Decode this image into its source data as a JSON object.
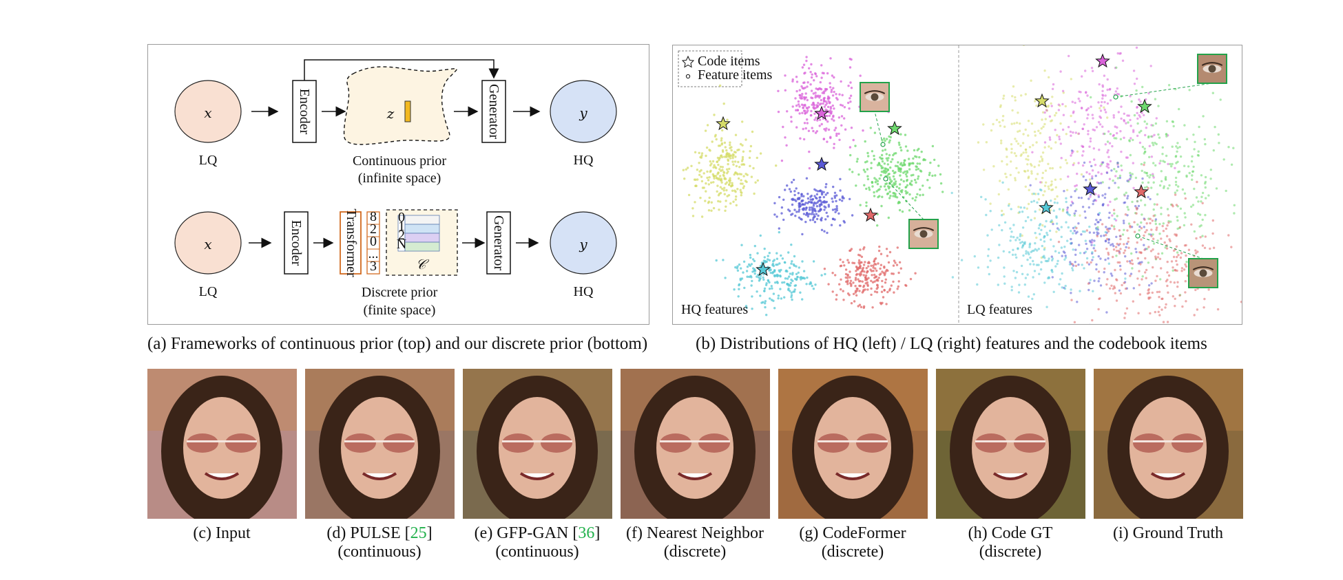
{
  "panel_a": {
    "top": {
      "input_symbol": "𝑥",
      "input_label": "LQ",
      "encoder": "Encoder",
      "latent_symbol": "𝑧",
      "prior_label_1": "Continuous prior",
      "prior_label_2": "(infinite space)",
      "generator": "Generator",
      "output_symbol": "𝑦",
      "output_label": "HQ"
    },
    "bottom": {
      "input_symbol": "𝑥",
      "input_label": "LQ",
      "encoder": "Encoder",
      "transformer": "Transformer",
      "indices": [
        "8",
        "2",
        "0",
        "...",
        "3"
      ],
      "codebook_rows": [
        "0",
        "1",
        "2",
        "N"
      ],
      "codebook_symbol": "𝒞",
      "prior_label_1": "Discrete prior",
      "prior_label_2": "(finite space)",
      "generator": "Generator",
      "output_symbol": "𝑦",
      "output_label": "HQ"
    },
    "caption": "(a) Frameworks of continuous prior (top) and our discrete prior (bottom)"
  },
  "panel_b": {
    "legend": {
      "code_items": "Code items",
      "feature_items": "Feature items"
    },
    "left_label": "HQ features",
    "right_label": "LQ features",
    "caption": "(b) Distributions of HQ (left) / LQ (right) features and the codebook items",
    "cluster_colors": {
      "magenta": "#d963d9",
      "yellow": "#d6dc6a",
      "green": "#6ed86e",
      "blue": "#5a5ad6",
      "cyan": "#55c8d6",
      "red": "#e06a6a"
    }
  },
  "photos": [
    {
      "label": "(c) Input",
      "sub": "",
      "ref": "",
      "tint": "#b88c86"
    },
    {
      "label": "(d) PULSE [",
      "ref": "25",
      "label_end": "]",
      "sub": "(continuous)",
      "tint": "#9a7664"
    },
    {
      "label": "(e) GFP-GAN [",
      "ref": "36",
      "label_end": "]",
      "sub": "(continuous)",
      "tint": "#7a6a4e"
    },
    {
      "label": "(f) Nearest Neighbor",
      "sub": "(discrete)",
      "ref": "",
      "tint": "#8c6452"
    },
    {
      "label": "(g) CodeFormer",
      "sub": "(discrete)",
      "ref": "",
      "tint": "#a06a40"
    },
    {
      "label": "(h) Code GT",
      "sub": "(discrete)",
      "ref": "",
      "tint": "#6e6436"
    },
    {
      "label": "(i) Ground Truth",
      "sub": "",
      "ref": "",
      "tint": "#8a6a3e"
    }
  ]
}
